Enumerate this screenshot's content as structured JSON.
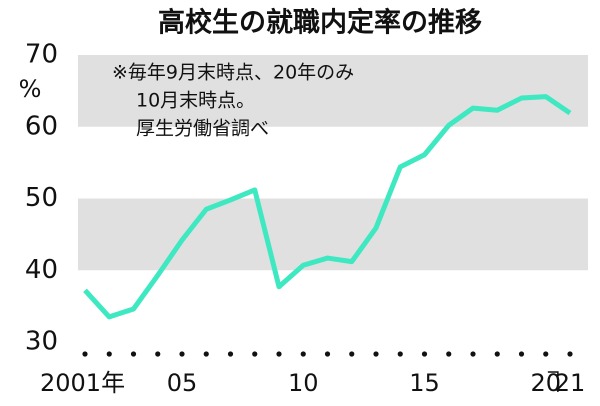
{
  "chart_data": {
    "type": "line",
    "title": "高校生の就職内定率の推移",
    "ylabel": "%",
    "annotations": [
      "※毎年9月末時点、20年のみ",
      "10月末時点。",
      "厚生労働省調べ"
    ],
    "x": [
      2001,
      2002,
      2003,
      2004,
      2005,
      2006,
      2007,
      2008,
      2009,
      2010,
      2011,
      2012,
      2013,
      2014,
      2015,
      2016,
      2017,
      2018,
      2019,
      2020,
      2021
    ],
    "values": [
      37.2,
      33.5,
      34.6,
      39.3,
      44.2,
      48.5,
      49.8,
      51.2,
      37.7,
      40.7,
      41.7,
      41.2,
      45.9,
      54.4,
      56.1,
      60.2,
      62.6,
      62.3,
      64.0,
      64.2,
      61.9
    ],
    "color": "#3ee8c0",
    "xlim": [
      2001,
      2021
    ],
    "xticks": [
      {
        "value": 2001,
        "label": "2001年"
      },
      {
        "value": 2005,
        "label": "05"
      },
      {
        "value": 2010,
        "label": "10"
      },
      {
        "value": 2015,
        "label": "15"
      },
      {
        "value": 2020,
        "label": "20"
      },
      {
        "value": 2021,
        "label": "21"
      }
    ],
    "ylim": [
      30,
      70
    ],
    "yticks": [
      30,
      40,
      50,
      60,
      70
    ],
    "band_color": "#e0e0e0"
  }
}
